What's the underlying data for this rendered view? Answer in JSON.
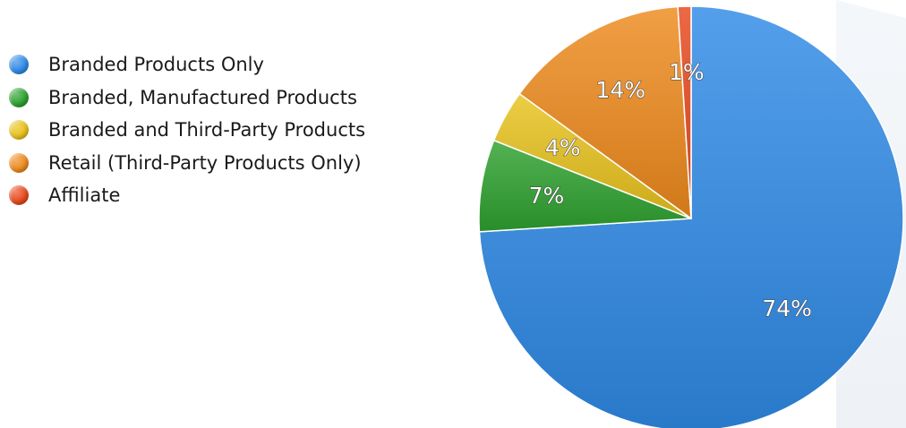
{
  "chart_data": {
    "type": "pie",
    "categories": [
      "Branded Products Only",
      "Branded, Manufactured Products",
      "Branded and Third-Party Products",
      "Retail (Third-Party Products Only)",
      "Affiliate"
    ],
    "values": [
      74,
      7,
      4,
      14,
      1
    ],
    "data_labels": [
      "74%",
      "7%",
      "4%",
      "14%",
      "1%"
    ],
    "colors": [
      "#2f8ae6",
      "#2ea12f",
      "#e8c21c",
      "#ee8a1c",
      "#e8481c"
    ],
    "legend_position": "top-left",
    "start_angle": "top, clockwise"
  }
}
